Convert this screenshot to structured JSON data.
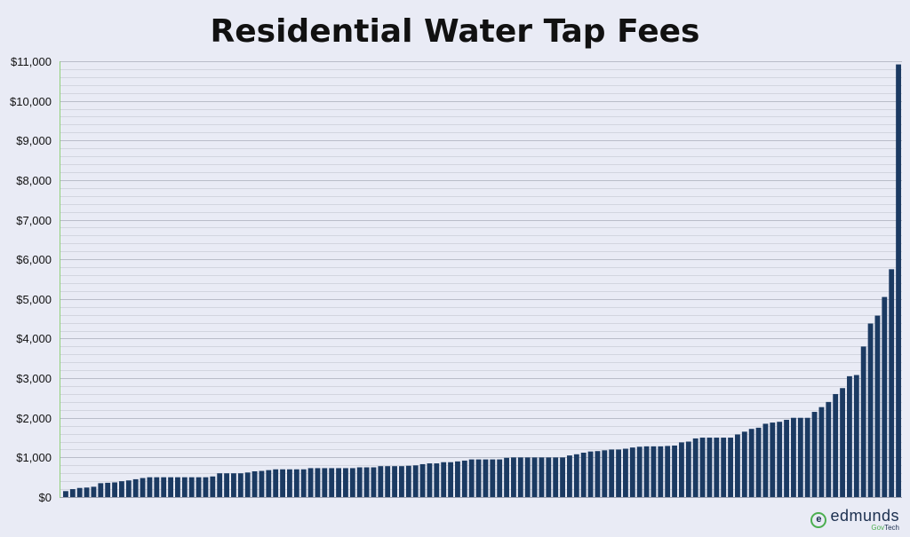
{
  "chart_data": {
    "type": "bar",
    "title": "Residential Water Tap Fees",
    "xlabel": "",
    "ylabel": "",
    "ylim": [
      0,
      11000
    ],
    "y_tick_values": [
      0,
      1000,
      2000,
      3000,
      4000,
      5000,
      6000,
      7000,
      8000,
      9000,
      10000,
      11000
    ],
    "y_tick_labels": [
      "$0",
      "$1,000",
      "$2,000",
      "$3,000",
      "$4,000",
      "$5,000",
      "$6,000",
      "$7,000",
      "$8,000",
      "$9,000",
      "$10,000",
      "$11,000"
    ],
    "minor_grid_step": 200,
    "grid": true,
    "bar_color": "#1b3a62",
    "values": [
      150,
      200,
      230,
      240,
      260,
      350,
      360,
      370,
      400,
      420,
      450,
      480,
      500,
      500,
      500,
      500,
      500,
      500,
      500,
      500,
      500,
      520,
      600,
      600,
      600,
      600,
      620,
      650,
      660,
      680,
      700,
      700,
      700,
      700,
      700,
      730,
      730,
      730,
      730,
      730,
      730,
      730,
      750,
      750,
      750,
      780,
      780,
      780,
      780,
      790,
      800,
      830,
      850,
      850,
      880,
      880,
      900,
      920,
      950,
      950,
      950,
      950,
      950,
      990,
      1000,
      1000,
      1000,
      1000,
      1000,
      1000,
      1000,
      1000,
      1050,
      1080,
      1120,
      1150,
      1160,
      1180,
      1200,
      1200,
      1220,
      1250,
      1270,
      1280,
      1280,
      1280,
      1290,
      1300,
      1380,
      1400,
      1480,
      1500,
      1500,
      1500,
      1500,
      1500,
      1580,
      1650,
      1720,
      1750,
      1850,
      1880,
      1900,
      1950,
      2000,
      2000,
      2000,
      2150,
      2270,
      2400,
      2600,
      2750,
      3050,
      3080,
      3800,
      4380,
      4580,
      5050,
      5750,
      10920
    ]
  },
  "logo": {
    "name": "edmunds",
    "sub_gov": "Gov",
    "sub_tech": "Tech",
    "mark": "e"
  },
  "colors": {
    "background": "#e9ebf5",
    "bar": "#1b3a62",
    "grid": "#c4c7d2",
    "axis_left": "#8fcf7a",
    "logo_green": "#4caf50"
  }
}
